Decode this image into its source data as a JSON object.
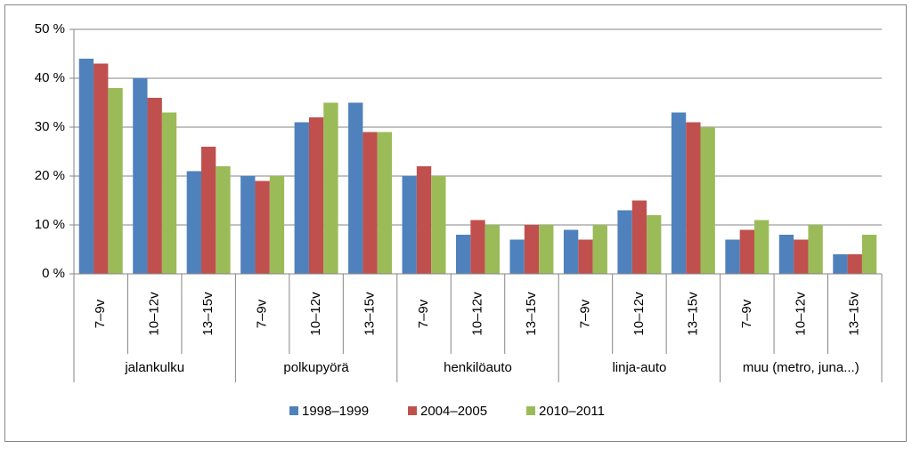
{
  "chart_data": {
    "type": "bar",
    "categories": [
      "7–9v",
      "10–12v",
      "13–15v",
      "7–9v",
      "10–12v",
      "13–15v",
      "7–9v",
      "10–12v",
      "13–15v",
      "7–9v",
      "10–12v",
      "13–15v",
      "7–9v",
      "10–12v",
      "13–15v"
    ],
    "groups": [
      "jalankulku",
      "polkupyörä",
      "henkilöauto",
      "linja-auto",
      "muu (metro, juna...)"
    ],
    "series": [
      {
        "name": "1998–1999",
        "color": "#4f81bd",
        "values": [
          44,
          40,
          21,
          20,
          31,
          35,
          20,
          8,
          7,
          9,
          13,
          33,
          7,
          8,
          4
        ]
      },
      {
        "name": "2004–2005",
        "color": "#c0504d",
        "values": [
          43,
          36,
          26,
          19,
          32,
          29,
          22,
          11,
          10,
          7,
          15,
          31,
          9,
          7,
          4
        ]
      },
      {
        "name": "2010–2011",
        "color": "#9bbb59",
        "values": [
          38,
          33,
          22,
          20,
          35,
          29,
          20,
          10,
          10,
          10,
          12,
          30,
          11,
          10,
          8
        ]
      }
    ],
    "ylim": [
      0,
      50
    ],
    "yticks": [
      {
        "value": 0,
        "label": "0 %"
      },
      {
        "value": 10,
        "label": "10 %"
      },
      {
        "value": 20,
        "label": "20 %"
      },
      {
        "value": 30,
        "label": "30 %"
      },
      {
        "value": 40,
        "label": "40 %"
      },
      {
        "value": 50,
        "label": "50 %"
      }
    ],
    "grid": true,
    "legend": "bottom"
  }
}
